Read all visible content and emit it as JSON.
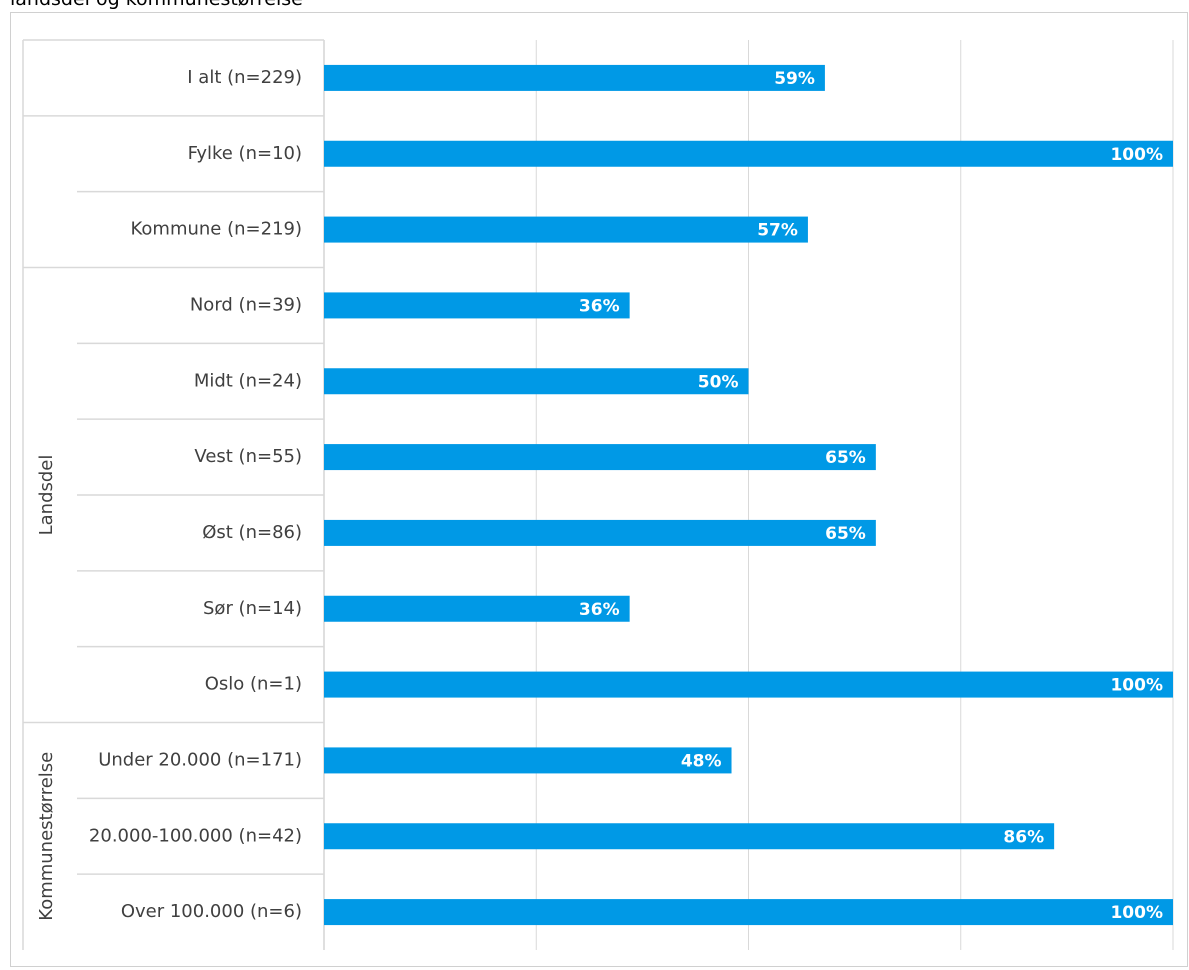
{
  "caption": "landsdel og kommunestørrelse",
  "chart_data": {
    "type": "bar",
    "orientation": "horizontal",
    "xlim": [
      0,
      100
    ],
    "grid": true,
    "bar_color": "#0099E6",
    "categories": [
      "I alt (n=229)",
      "Fylke (n=10)",
      "Kommune (n=219)",
      "Nord (n=39)",
      "Midt (n=24)",
      "Vest (n=55)",
      "Øst (n=86)",
      "Sør (n=14)",
      "Oslo (n=1)",
      "Under 20.000 (n=171)",
      "20.000-100.000 (n=42)",
      "Over 100.000 (n=6)"
    ],
    "values": [
      59,
      100,
      57,
      36,
      50,
      65,
      65,
      36,
      100,
      48,
      86,
      100
    ],
    "data_labels": [
      "59%",
      "100%",
      "57%",
      "36%",
      "50%",
      "65%",
      "65%",
      "36%",
      "100%",
      "48%",
      "86%",
      "100%"
    ],
    "groups": [
      {
        "name": "",
        "start": 0,
        "end": 0
      },
      {
        "name": "",
        "start": 1,
        "end": 2
      },
      {
        "name": "Landsdel",
        "start": 3,
        "end": 8
      },
      {
        "name": "Kommunestørrelse",
        "start": 9,
        "end": 11
      }
    ]
  }
}
